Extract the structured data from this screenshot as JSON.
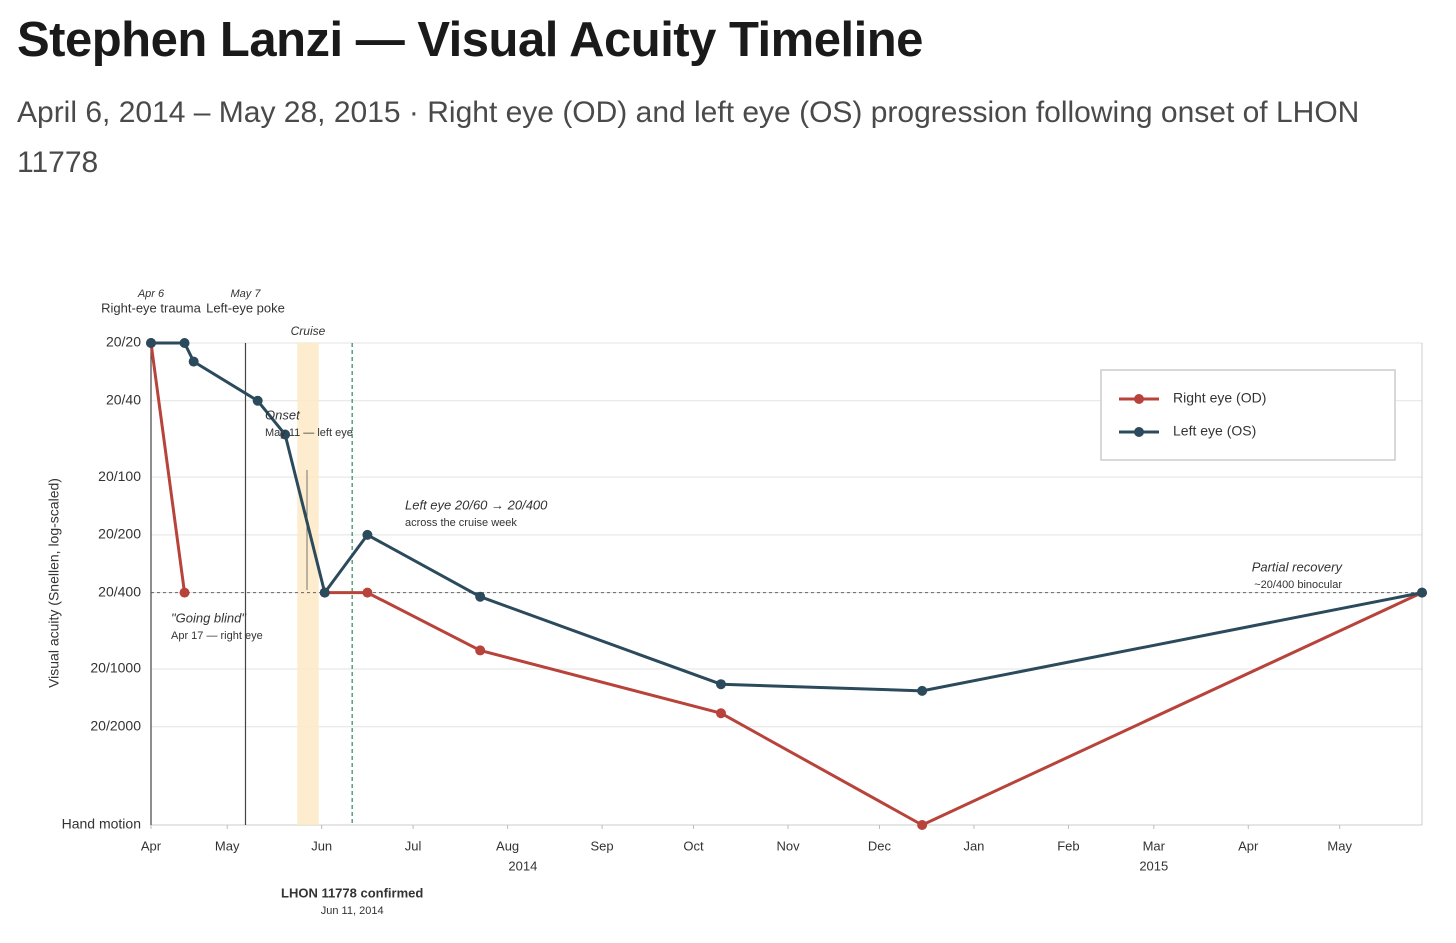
{
  "chart_data": {
    "type": "line",
    "title": "Stephen Lanzi — Visual Acuity Timeline",
    "subtitle": "April 6, 2014 – May 28, 2015 · Right eye (OD) and left eye (OS) progression following onset of LHON 11778",
    "y_label": "Visual acuity (Snellen, log-scaled)",
    "x": [
      "2014-04-06",
      "2014-04-17",
      "2014-04-20",
      "2014-05-11",
      "2014-05-20",
      "2014-06-02",
      "2014-06-16",
      "2014-07-23",
      "2014-10-10",
      "2014-12-15",
      "2015-05-28"
    ],
    "series": [
      {
        "name": "Right eye (OD)",
        "color": "#b8433a",
        "values": [
          20,
          400,
          null,
          null,
          null,
          400,
          400,
          800,
          1700,
          6500,
          400
        ]
      },
      {
        "name": "Left eye (OS)",
        "color": "#2b4a5c",
        "values": [
          20,
          20,
          25,
          40,
          60,
          400,
          200,
          420,
          1200,
          1300,
          400
        ]
      }
    ],
    "xlim": [
      "2014-04-06",
      "2015-05-28"
    ],
    "xticks": [
      {
        "value": "2014-04-06",
        "label": "Apr"
      },
      {
        "value": "2014-05-01",
        "label": "May"
      },
      {
        "value": "2014-06-01",
        "label": "Jun"
      },
      {
        "value": "2014-07-01",
        "label": "Jul"
      },
      {
        "value": "2014-08-01",
        "label": "Aug"
      },
      {
        "value": "2014-09-01",
        "label": "Sep"
      },
      {
        "value": "2014-10-01",
        "label": "Oct"
      },
      {
        "value": "2014-11-01",
        "label": "Nov"
      },
      {
        "value": "2014-12-01",
        "label": "Dec"
      },
      {
        "value": "2015-01-01",
        "label": "Jan"
      },
      {
        "value": "2015-02-01",
        "label": "Feb"
      },
      {
        "value": "2015-03-01",
        "label": "Mar"
      },
      {
        "value": "2015-04-01",
        "label": "Apr"
      },
      {
        "value": "2015-05-01",
        "label": "May"
      }
    ],
    "x_year_labels": [
      {
        "value": "2014-08-06",
        "label": "2014"
      },
      {
        "value": "2015-03-01",
        "label": "2015"
      }
    ],
    "ylim": [
      20,
      6500
    ],
    "y_log": true,
    "y_reversed": true,
    "yticks": [
      {
        "value": 20,
        "label": "20/20"
      },
      {
        "value": 40,
        "label": "20/40"
      },
      {
        "value": 100,
        "label": "20/100"
      },
      {
        "value": 200,
        "label": "20/200"
      },
      {
        "value": 400,
        "label": "20/400"
      },
      {
        "value": 1000,
        "label": "20/1000"
      },
      {
        "value": 2000,
        "label": "20/2000"
      },
      {
        "value": 6500,
        "label": "Hand motion"
      }
    ],
    "grid": true,
    "legend": "upper right",
    "reference_line": {
      "value": 400
    },
    "cruise": {
      "label": "Cruise",
      "start": "2014-05-24",
      "end": "2014-05-31"
    },
    "events": [
      {
        "date": "2014-04-06",
        "date_label": "Apr 6",
        "label": "Right-eye trauma"
      },
      {
        "date": "2014-05-07",
        "date_label": "May 7",
        "label": "Left-eye poke"
      },
      {
        "date": "2014-06-11",
        "date_label": "Jun 11, 2014",
        "label": "LHON 11778 confirmed"
      }
    ],
    "annotations": [
      {
        "text": "\"Going blind\"",
        "subtext": "Apr 17 — right eye"
      },
      {
        "text": "Onset",
        "subtext": "May 11 — left eye"
      },
      {
        "text": "Left eye 20/60 → 20/400",
        "subtext": "across the cruise week"
      },
      {
        "text": "Partial recovery",
        "subtext": "~20/400 binocular"
      }
    ]
  }
}
